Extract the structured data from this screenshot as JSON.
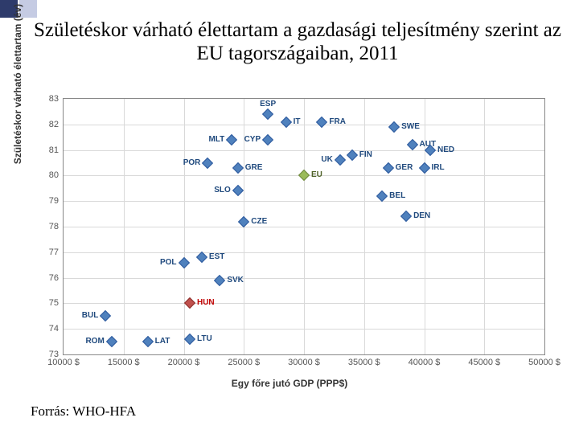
{
  "title": "Születéskor várható élettartam a gazdasági teljesítmény szerint az EU tagországaiban, 2011",
  "source": "Forrás: WHO-HFA",
  "chart": {
    "type": "scatter",
    "ylabel": "Születéskor várható élettartam (év)",
    "xlabel": "Egy főre jutó GDP (PPP$)",
    "xlim": [
      10000,
      50000
    ],
    "xtick_step": 5000,
    "ylim": [
      73,
      83
    ],
    "ytick_step": 1,
    "marker": "diamond",
    "marker_size": 10,
    "default_color": "#4f81bd",
    "grid_color": "#d9d9d9",
    "border_color": "#888888",
    "font_size_ticks": 11,
    "font_size_labels": 12,
    "font_size_point_labels": 10,
    "points": [
      {
        "code": "ESP",
        "x": 27000,
        "y": 82.4,
        "color": "#4f81bd",
        "lpos": "top"
      },
      {
        "code": "IT",
        "x": 28500,
        "y": 82.1,
        "color": "#4f81bd",
        "lpos": "right"
      },
      {
        "code": "FRA",
        "x": 31500,
        "y": 82.1,
        "color": "#4f81bd",
        "lpos": "right"
      },
      {
        "code": "SWE",
        "x": 37500,
        "y": 81.9,
        "color": "#4f81bd",
        "lpos": "right"
      },
      {
        "code": "CYP",
        "x": 27000,
        "y": 81.4,
        "color": "#4f81bd",
        "lpos": "left"
      },
      {
        "code": "MLT",
        "x": 24000,
        "y": 81.4,
        "color": "#4f81bd",
        "lpos": "left"
      },
      {
        "code": "AUT",
        "x": 39000,
        "y": 81.2,
        "color": "#4f81bd",
        "lpos": "right"
      },
      {
        "code": "NED",
        "x": 40500,
        "y": 81.0,
        "color": "#4f81bd",
        "lpos": "right"
      },
      {
        "code": "FIN",
        "x": 34000,
        "y": 80.8,
        "color": "#4f81bd",
        "lpos": "right"
      },
      {
        "code": "UK",
        "x": 33000,
        "y": 80.6,
        "color": "#4f81bd",
        "lpos": "left"
      },
      {
        "code": "POR",
        "x": 22000,
        "y": 80.5,
        "color": "#4f81bd",
        "lpos": "left"
      },
      {
        "code": "GER",
        "x": 37000,
        "y": 80.3,
        "color": "#4f81bd",
        "lpos": "right"
      },
      {
        "code": "IRL",
        "x": 40000,
        "y": 80.3,
        "color": "#4f81bd",
        "lpos": "right"
      },
      {
        "code": "GRE",
        "x": 24500,
        "y": 80.3,
        "color": "#4f81bd",
        "lpos": "right"
      },
      {
        "code": "EU",
        "x": 30000,
        "y": 80.0,
        "color": "#9bbb59",
        "lpos": "right"
      },
      {
        "code": "SLO",
        "x": 24500,
        "y": 79.4,
        "color": "#4f81bd",
        "lpos": "left"
      },
      {
        "code": "BEL",
        "x": 36500,
        "y": 79.2,
        "color": "#4f81bd",
        "lpos": "right"
      },
      {
        "code": "DEN",
        "x": 38500,
        "y": 78.4,
        "color": "#4f81bd",
        "lpos": "right"
      },
      {
        "code": "CZE",
        "x": 25000,
        "y": 78.2,
        "color": "#4f81bd",
        "lpos": "right"
      },
      {
        "code": "EST",
        "x": 21500,
        "y": 76.8,
        "color": "#4f81bd",
        "lpos": "right"
      },
      {
        "code": "POL",
        "x": 20000,
        "y": 76.6,
        "color": "#4f81bd",
        "lpos": "left"
      },
      {
        "code": "SVK",
        "x": 23000,
        "y": 75.9,
        "color": "#4f81bd",
        "lpos": "right"
      },
      {
        "code": "HUN",
        "x": 20500,
        "y": 75.0,
        "color": "#c0504d",
        "lpos": "right"
      },
      {
        "code": "BUL",
        "x": 13500,
        "y": 74.5,
        "color": "#4f81bd",
        "lpos": "left"
      },
      {
        "code": "ROM",
        "x": 14000,
        "y": 73.5,
        "color": "#4f81bd",
        "lpos": "left"
      },
      {
        "code": "LAT",
        "x": 17000,
        "y": 73.5,
        "color": "#4f81bd",
        "lpos": "right"
      },
      {
        "code": "LTU",
        "x": 20500,
        "y": 73.6,
        "color": "#4f81bd",
        "lpos": "right"
      }
    ]
  }
}
